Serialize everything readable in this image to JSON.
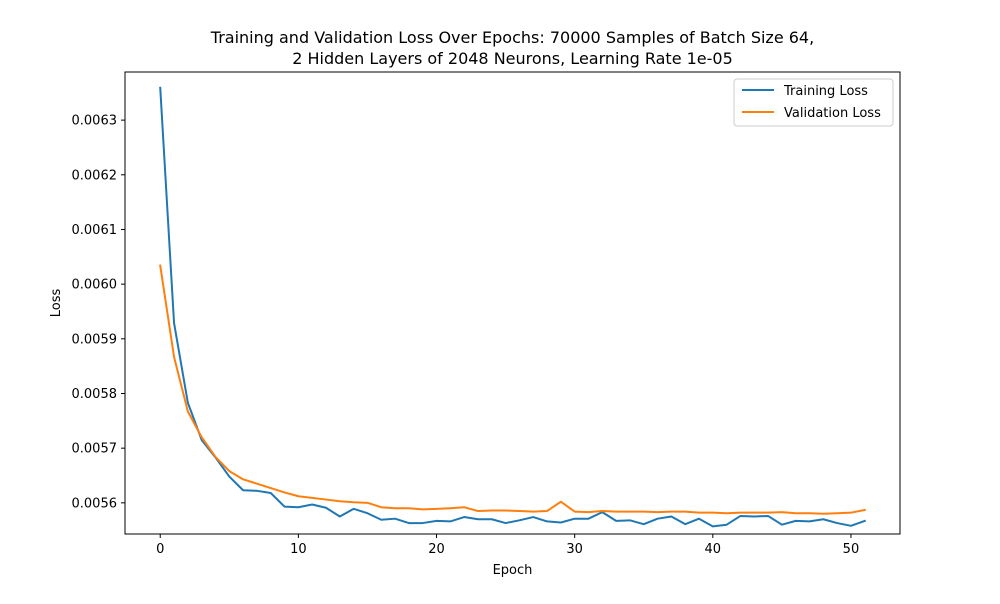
{
  "chart_data": {
    "type": "line",
    "title_lines": [
      "Training and Validation Loss Over Epochs: 70000 Samples of Batch Size 64,",
      "2 Hidden Layers of 2048 Neurons, Learning Rate 1e-05"
    ],
    "xlabel": "Epoch",
    "ylabel": "Loss",
    "xlim": [
      -2.55,
      53.55
    ],
    "ylim": [
      0.005543,
      0.006388
    ],
    "xticks": [
      0,
      10,
      20,
      30,
      40,
      50
    ],
    "xtick_labels": [
      "0",
      "10",
      "20",
      "30",
      "40",
      "50"
    ],
    "yticks": [
      0.0056,
      0.0057,
      0.0058,
      0.0059,
      0.006,
      0.0061,
      0.0062,
      0.0063
    ],
    "ytick_labels": [
      "0.0056",
      "0.0057",
      "0.0058",
      "0.0059",
      "0.0060",
      "0.0061",
      "0.0062",
      "0.0063"
    ],
    "grid": false,
    "legend_position": "top-right",
    "x": [
      0,
      1,
      2,
      3,
      4,
      5,
      6,
      7,
      8,
      9,
      10,
      11,
      12,
      13,
      14,
      15,
      16,
      17,
      18,
      19,
      20,
      21,
      22,
      23,
      24,
      25,
      26,
      27,
      28,
      29,
      30,
      31,
      32,
      33,
      34,
      35,
      36,
      37,
      38,
      39,
      40,
      41,
      42,
      43,
      44,
      45,
      46,
      47,
      48,
      49,
      50,
      51
    ],
    "series": [
      {
        "name": "Training Loss",
        "color": "#1f77b4",
        "values": [
          0.006359,
          0.005929,
          0.005783,
          0.005715,
          0.005683,
          0.005648,
          0.005623,
          0.005622,
          0.005618,
          0.005593,
          0.005592,
          0.005597,
          0.005591,
          0.005575,
          0.005589,
          0.005581,
          0.005569,
          0.005571,
          0.005563,
          0.005563,
          0.005567,
          0.005566,
          0.005574,
          0.00557,
          0.00557,
          0.005563,
          0.005568,
          0.005574,
          0.005566,
          0.005564,
          0.005571,
          0.005571,
          0.005583,
          0.005567,
          0.005568,
          0.005561,
          0.005571,
          0.005575,
          0.005561,
          0.005571,
          0.005557,
          0.00556,
          0.005576,
          0.005575,
          0.005576,
          0.00556,
          0.005567,
          0.005566,
          0.00557,
          0.005563,
          0.005558,
          0.005567
        ]
      },
      {
        "name": "Validation Loss",
        "color": "#ff7f0e",
        "values": [
          0.006034,
          0.005867,
          0.005767,
          0.00572,
          0.005684,
          0.005658,
          0.005643,
          0.005635,
          0.005627,
          0.005619,
          0.005612,
          0.005609,
          0.005606,
          0.005603,
          0.005601,
          0.0056,
          0.005592,
          0.00559,
          0.00559,
          0.005588,
          0.005589,
          0.00559,
          0.005592,
          0.005585,
          0.005586,
          0.005586,
          0.005585,
          0.005584,
          0.005585,
          0.005602,
          0.005584,
          0.005583,
          0.005585,
          0.005584,
          0.005584,
          0.005584,
          0.005583,
          0.005584,
          0.005584,
          0.005582,
          0.005582,
          0.005581,
          0.005582,
          0.005582,
          0.005582,
          0.005583,
          0.005581,
          0.005581,
          0.00558,
          0.005581,
          0.005582,
          0.005587
        ]
      }
    ]
  }
}
